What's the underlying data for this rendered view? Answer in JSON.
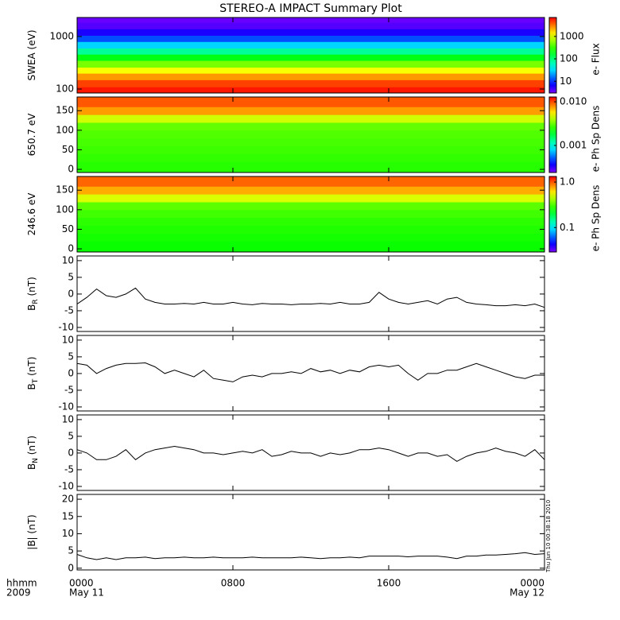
{
  "title": "STEREO-A IMPACT Summary Plot",
  "timestamp": "Thu Jun 10 00:38:18 2010",
  "xlim": [
    0,
    24
  ],
  "xticks": [
    {
      "value": 0,
      "label": "0000"
    },
    {
      "value": 8,
      "label": "0800"
    },
    {
      "value": 16,
      "label": "1600"
    },
    {
      "value": 24,
      "label": "0000"
    }
  ],
  "xlabel": [
    "hhmm",
    "2009"
  ],
  "dates": [
    {
      "value": 0,
      "label": "May 11"
    },
    {
      "value": 24,
      "label": "May 12"
    }
  ],
  "time": [
    0,
    0.5,
    1,
    1.5,
    2,
    2.5,
    3,
    3.5,
    4,
    4.5,
    5,
    5.5,
    6,
    6.5,
    7,
    7.5,
    8,
    8.5,
    9,
    9.5,
    10,
    10.5,
    11,
    11.5,
    12,
    12.5,
    13,
    13.5,
    14,
    14.5,
    15,
    15.5,
    16,
    16.5,
    17,
    17.5,
    18,
    18.5,
    19,
    19.5,
    20,
    20.5,
    21,
    21.5,
    22,
    22.5,
    23,
    23.5,
    24
  ],
  "chart_data": [
    {
      "type": "heatmap",
      "ylabel": "SWEA (eV)",
      "ylog": true,
      "ylim": [
        84,
        2300
      ],
      "yticks": [
        100,
        1000
      ],
      "ybins": [
        84,
        110,
        150,
        200,
        260,
        350,
        460,
        600,
        800,
        1050,
        1400,
        1850,
        2300
      ],
      "values": [
        6000,
        4500,
        2500,
        1200,
        500,
        200,
        80,
        30,
        12,
        6,
        4,
        3.5
      ],
      "colormap": "rainbow",
      "clog": true,
      "clim": [
        3,
        7000
      ],
      "cticks": [
        10,
        100,
        1000
      ],
      "clabel": "e- Flux"
    },
    {
      "type": "heatmap",
      "ylabel": "650.7 eV",
      "ylog": false,
      "ylim": [
        -8,
        185
      ],
      "yticks": [
        0,
        50,
        100,
        150
      ],
      "ybins": [
        -8,
        20,
        40,
        60,
        80,
        100,
        120,
        140,
        160,
        185
      ],
      "values": [
        0.0025,
        0.0026,
        0.0027,
        0.0028,
        0.0029,
        0.0031,
        0.0045,
        0.0075,
        0.0095
      ],
      "colormap": "rainbow",
      "clog": true,
      "clim": [
        0.00024,
        0.0129
      ],
      "cticks": [
        0.001,
        {
          "value": 0.01,
          "label": "0.010"
        }
      ],
      "clabel": "e- Ph Sp Dens"
    },
    {
      "type": "heatmap",
      "ylabel": "246.6 eV",
      "ylog": false,
      "ylim": [
        -8,
        185
      ],
      "yticks": [
        0,
        50,
        100,
        150
      ],
      "ybins": [
        -8,
        20,
        40,
        60,
        80,
        100,
        120,
        140,
        160,
        185
      ],
      "values": [
        0.25,
        0.26,
        0.27,
        0.28,
        0.3,
        0.33,
        0.5,
        0.75,
        0.95
      ],
      "colormap": "rainbow",
      "clog": true,
      "clim": [
        0.029,
        1.33
      ],
      "cticks": [
        0.1,
        {
          "value": 1,
          "label": "1.0"
        }
      ],
      "clabel": "e- Ph Sp Dens"
    },
    {
      "type": "line",
      "ylabel": "B",
      "ylabel_sub": "R",
      "ylabel_unit": " (nT)",
      "ylim": [
        -11.2,
        11.4
      ],
      "yticks": [
        -10,
        -5,
        0,
        5,
        10
      ],
      "color": "#000000",
      "values": [
        -3,
        -1,
        1.5,
        -0.5,
        -1,
        0,
        1.8,
        -1.5,
        -2.5,
        -3,
        -3,
        -2.8,
        -3,
        -2.5,
        -3,
        -3,
        -2.5,
        -3,
        -3.2,
        -2.8,
        -3,
        -3,
        -3.2,
        -3,
        -3,
        -2.8,
        -3,
        -2.5,
        -3,
        -3,
        -2.5,
        0.5,
        -1.5,
        -2.5,
        -3,
        -2.5,
        -2,
        -3,
        -1.5,
        -1,
        -2.5,
        -3,
        -3.2,
        -3.5,
        -3.5,
        -3.2,
        -3.5,
        -3,
        -4
      ]
    },
    {
      "type": "line",
      "ylabel": "B",
      "ylabel_sub": "T",
      "ylabel_unit": " (nT)",
      "ylim": [
        -11.2,
        11.4
      ],
      "yticks": [
        -10,
        -5,
        0,
        5,
        10
      ],
      "color": "#000000",
      "values": [
        3,
        2.5,
        0,
        1.5,
        2.5,
        3,
        3,
        3.2,
        2,
        0,
        1,
        0,
        -1,
        1,
        -1.5,
        -2,
        -2.5,
        -1,
        -0.5,
        -1,
        0,
        0,
        0.5,
        0,
        1.5,
        0.5,
        1,
        0,
        1,
        0.5,
        2,
        2.5,
        2,
        2.5,
        0,
        -2,
        0,
        0,
        1,
        1,
        2,
        3,
        2,
        1,
        0,
        -1,
        -1.5,
        -0.5,
        -0.5
      ]
    },
    {
      "type": "line",
      "ylabel": "B",
      "ylabel_sub": "N",
      "ylabel_unit": " (nT)",
      "ylim": [
        -11.2,
        11.4
      ],
      "yticks": [
        -10,
        -5,
        0,
        5,
        10
      ],
      "color": "#000000",
      "values": [
        1,
        0,
        -2,
        -2,
        -1,
        1,
        -2,
        0,
        1,
        1.5,
        2,
        1.5,
        1,
        0,
        0,
        -0.5,
        0,
        0.5,
        0,
        1,
        -1,
        -0.5,
        0.5,
        0,
        0,
        -1,
        0,
        -0.5,
        0,
        1,
        1,
        1.5,
        1,
        0,
        -1,
        0,
        0,
        -1,
        -0.5,
        -2.5,
        -1,
        0,
        0.5,
        1.5,
        0.5,
        0,
        -1,
        1,
        -2
      ]
    },
    {
      "type": "line",
      "ylabel": "|B| (nT)",
      "ylim": [
        -0.5,
        21.4
      ],
      "yticks": [
        0,
        5,
        10,
        15,
        20
      ],
      "color": "#000000",
      "values": [
        4,
        3,
        2.5,
        3,
        2.5,
        3,
        3,
        3.2,
        2.8,
        3,
        3,
        3.2,
        3,
        3,
        3.2,
        3,
        3,
        3,
        3.2,
        3,
        3,
        3,
        3,
        3.2,
        3,
        2.8,
        3,
        3,
        3.2,
        3,
        3.5,
        3.5,
        3.5,
        3.5,
        3.3,
        3.5,
        3.5,
        3.5,
        3.2,
        2.8,
        3.5,
        3.5,
        3.8,
        3.8,
        4,
        4.2,
        4.5,
        4,
        4.2
      ]
    }
  ]
}
